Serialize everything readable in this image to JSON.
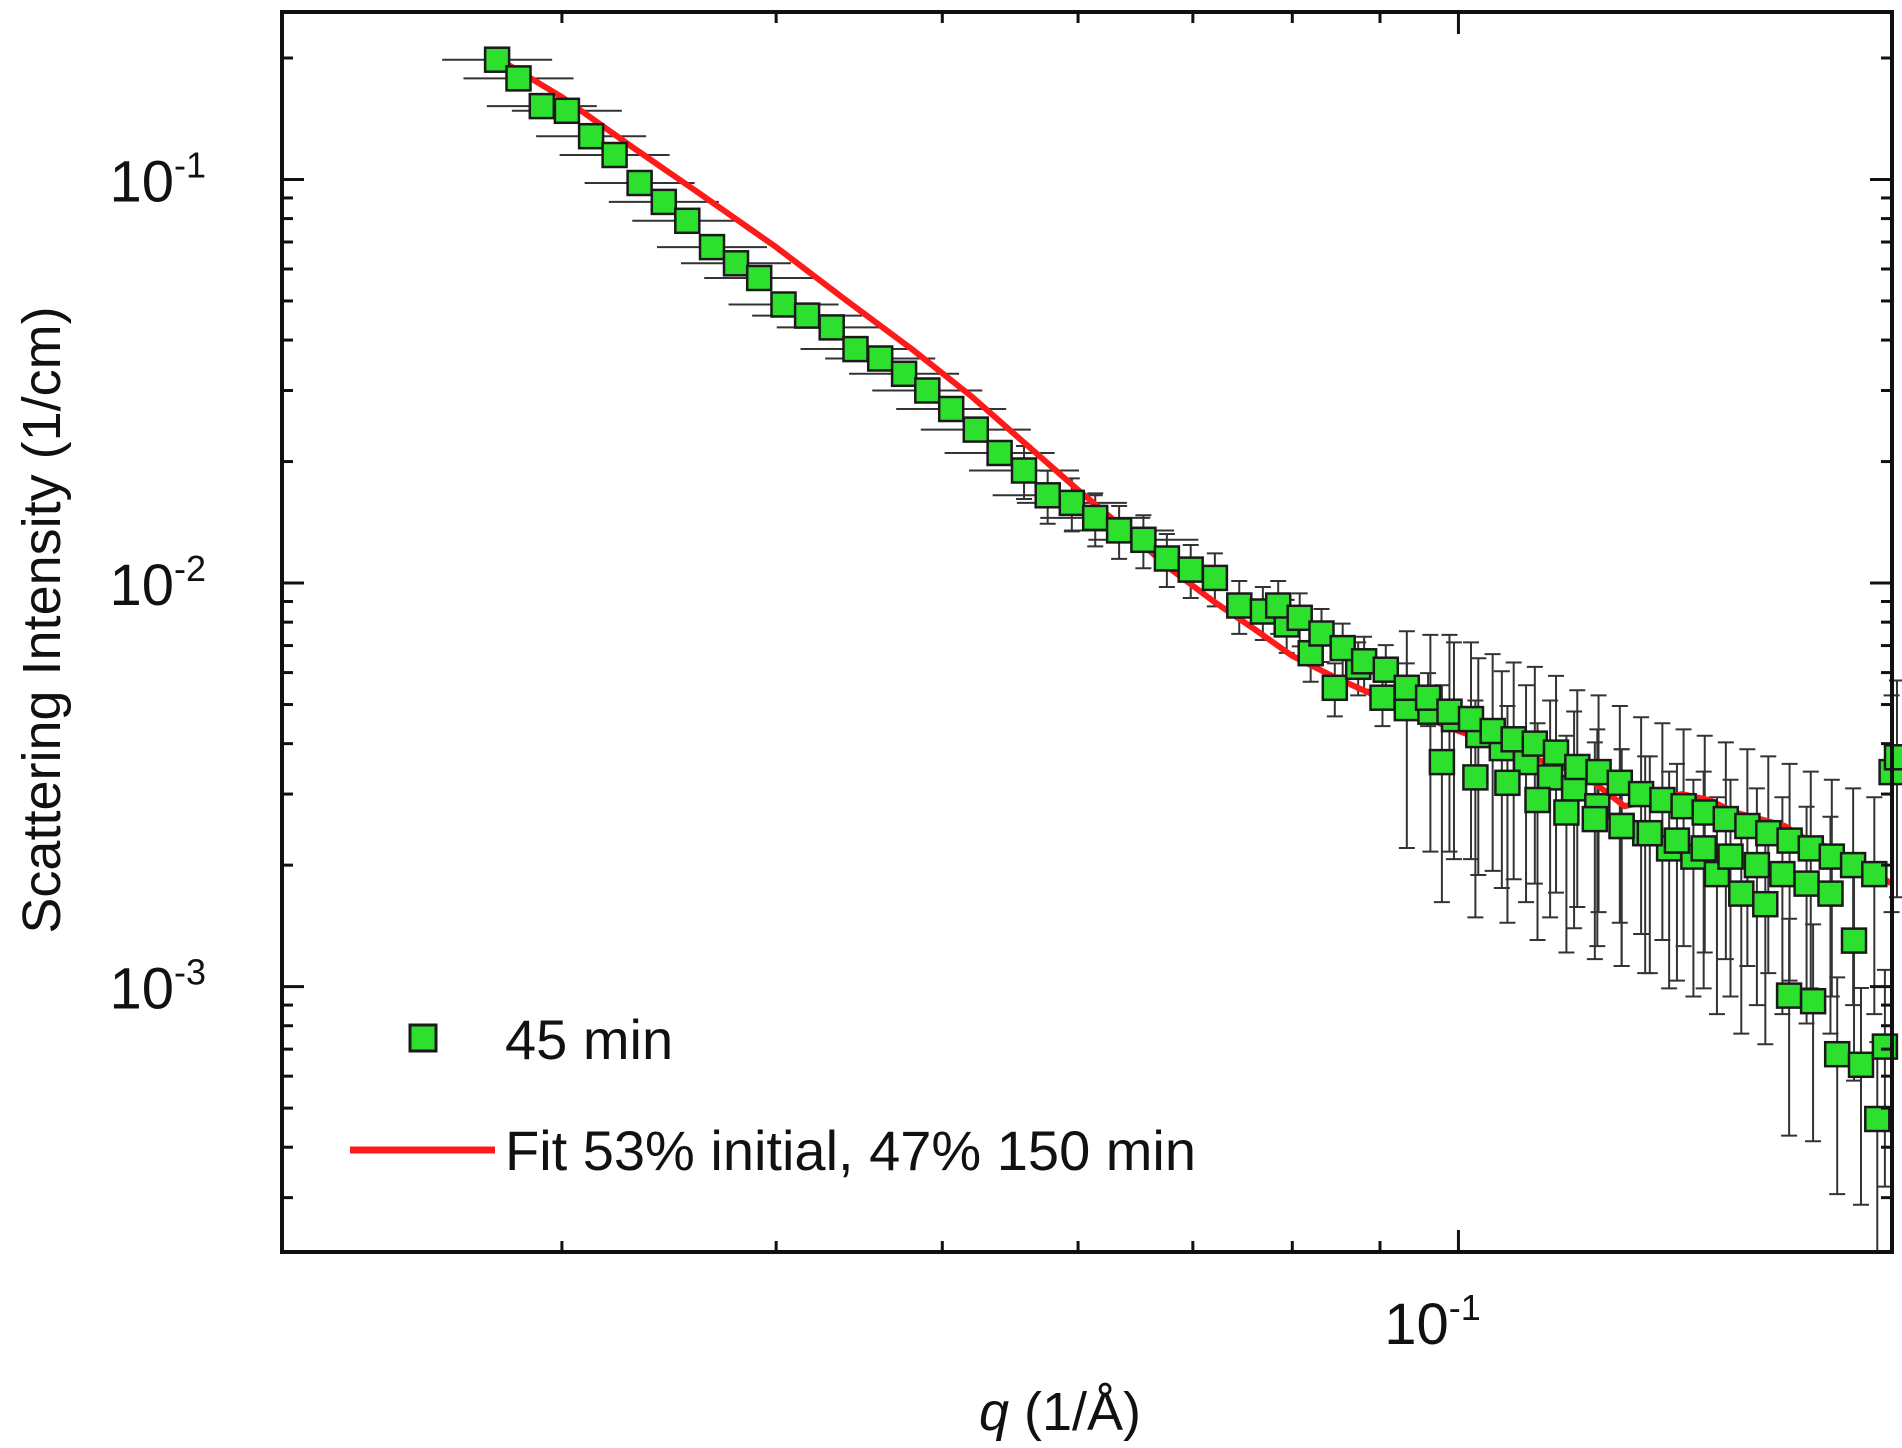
{
  "chart_data": {
    "type": "scatter",
    "xscale": "log",
    "yscale": "log",
    "xlim": [
      0.0206,
      0.179
    ],
    "ylim": [
      0.00022,
      0.26
    ],
    "xlabel": {
      "var": "q",
      "rest": " (1/Å)"
    },
    "ylabel": "Scattering Intensity (1/cm)",
    "xticks": [
      {
        "value": 0.1,
        "base": "10",
        "exp": "-1"
      }
    ],
    "yticks": [
      {
        "value": 0.1,
        "base": "10",
        "exp": "-1"
      },
      {
        "value": 0.01,
        "base": "10",
        "exp": "-2"
      },
      {
        "value": 0.001,
        "base": "10",
        "exp": "-3"
      }
    ],
    "grid": false,
    "legend_position": "bottom-left",
    "colors": {
      "marker_fill": "#2ee02e",
      "marker_edge": "#1a1a1a",
      "fit_line": "#ff1a1a",
      "error_bar": "#333333"
    },
    "series": [
      {
        "name": "45 min",
        "kind": "scatter",
        "marker": "square",
        "x": [
          0.0275,
          0.0283,
          0.0292,
          0.0302,
          0.0312,
          0.0322,
          0.0333,
          0.0344,
          0.0355,
          0.0367,
          0.0379,
          0.0391,
          0.0404,
          0.0417,
          0.0431,
          0.0445,
          0.046,
          0.0475,
          0.049,
          0.0506,
          0.0523,
          0.054,
          0.0558,
          0.0576,
          0.0595,
          0.0614,
          0.0634,
          0.0655,
          0.0676,
          0.0698,
          0.0721,
          0.0745,
          0.0769,
          0.0794,
          0.082,
          0.0847,
          0.0874,
          0.0903,
          0.0933,
          0.0963,
          0.0994,
          0.1027,
          0.106,
          0.1095,
          0.1131,
          0.1168,
          0.1205,
          0.1245,
          0.1285,
          0.1327,
          0.1371,
          0.1415,
          0.1462,
          0.151,
          0.1559,
          0.161,
          0.1663,
          0.1717,
          0.1773,
          0.0785,
          0.0808,
          0.0832,
          0.0856,
          0.0881,
          0.0907,
          0.0933,
          0.096,
          0.0988,
          0.1017,
          0.1047,
          0.1077,
          0.1108,
          0.114,
          0.1173,
          0.1207,
          0.1242,
          0.1278,
          0.1315,
          0.1353,
          0.1392,
          0.1432,
          0.1474,
          0.1516,
          0.156,
          0.1605,
          0.1651,
          0.1699,
          0.1748,
          0.1789,
          0.1802,
          0.0978,
          0.1023,
          0.1068,
          0.1112,
          0.1156,
          0.1201,
          0.1245,
          0.1293,
          0.1341,
          0.139,
          0.1441,
          0.1493,
          0.1545,
          0.1596,
          0.1648,
          0.1701,
          0.1755
        ],
        "y": [
          0.198,
          0.178,
          0.152,
          0.148,
          0.128,
          0.115,
          0.098,
          0.088,
          0.079,
          0.068,
          0.062,
          0.057,
          0.049,
          0.046,
          0.043,
          0.038,
          0.036,
          0.033,
          0.03,
          0.027,
          0.024,
          0.021,
          0.019,
          0.0165,
          0.0158,
          0.0145,
          0.0135,
          0.0128,
          0.0115,
          0.0108,
          0.0103,
          0.0088,
          0.0085,
          0.0079,
          0.0067,
          0.0055,
          0.0062,
          0.0052,
          0.0049,
          0.0048,
          0.0046,
          0.0042,
          0.0039,
          0.0036,
          0.0033,
          0.0031,
          0.0028,
          0.0025,
          0.0024,
          0.0022,
          0.0021,
          0.0019,
          0.0017,
          0.0016,
          0.00095,
          0.00092,
          0.00068,
          0.00064,
          0.00071,
          0.0088,
          0.0082,
          0.0075,
          0.0069,
          0.0064,
          0.0061,
          0.0055,
          0.0052,
          0.0048,
          0.0046,
          0.0043,
          0.0041,
          0.004,
          0.0038,
          0.0035,
          0.0034,
          0.0032,
          0.003,
          0.0029,
          0.0028,
          0.0027,
          0.0026,
          0.0025,
          0.0024,
          0.0023,
          0.0022,
          0.0021,
          0.002,
          0.0019,
          0.0034,
          0.0037,
          0.0036,
          0.0033,
          0.0032,
          0.0029,
          0.0027,
          0.0026,
          0.0025,
          0.0024,
          0.0023,
          0.0022,
          0.0021,
          0.002,
          0.0019,
          0.0018,
          0.0017,
          0.0013,
          0.00047
        ]
      },
      {
        "name": "Fit 53% initial, 47% 150 min",
        "kind": "line",
        "x": [
          0.0275,
          0.03,
          0.033,
          0.036,
          0.04,
          0.044,
          0.048,
          0.052,
          0.056,
          0.06,
          0.064,
          0.068,
          0.072,
          0.076,
          0.08,
          0.085,
          0.09,
          0.095,
          0.1,
          0.105,
          0.11,
          0.115,
          0.12,
          0.125,
          0.13,
          0.135,
          0.14,
          0.145,
          0.15,
          0.155,
          0.16,
          0.165,
          0.17,
          0.175,
          0.179
        ],
        "y": [
          0.2,
          0.16,
          0.12,
          0.093,
          0.068,
          0.05,
          0.038,
          0.029,
          0.022,
          0.017,
          0.0135,
          0.0108,
          0.009,
          0.0077,
          0.0066,
          0.0058,
          0.0052,
          0.0047,
          0.0043,
          0.004,
          0.0037,
          0.0035,
          0.0032,
          0.0028,
          0.0029,
          0.003,
          0.0029,
          0.0027,
          0.0026,
          0.0025,
          0.0023,
          0.0022,
          0.002,
          0.0019,
          0.0018
        ]
      }
    ]
  }
}
